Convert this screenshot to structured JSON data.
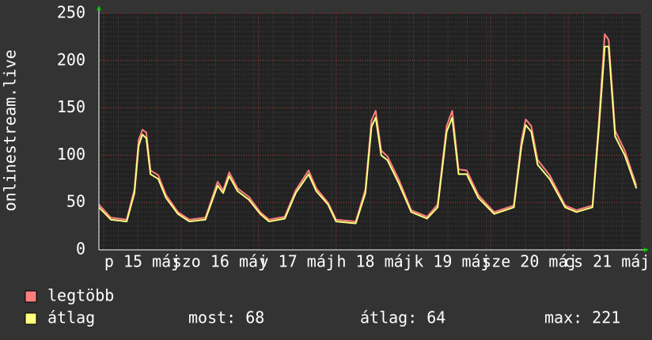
{
  "chart_data": {
    "type": "line",
    "y_label": "onlinestream.live",
    "x": [
      0,
      3.7,
      8.6,
      11,
      12.3,
      13.5,
      14.7,
      16,
      18.4,
      20.8,
      24.5,
      28,
      33,
      36.8,
      38.5,
      40.4,
      43,
      46.5,
      50,
      52.7,
      57.6,
      61,
      65,
      67.4,
      71,
      73.5,
      79.6,
      82.6,
      84.5,
      85.8,
      87.5,
      89.4,
      93,
      96.8,
      101.7,
      105,
      107.8,
      109.5,
      111.5,
      114,
      117.6,
      122.5,
      128.6,
      131,
      132.3,
      134,
      136,
      139.7,
      144.5,
      148,
      153,
      155,
      156.8,
      158,
      160,
      163,
      166.6
    ],
    "series": [
      {
        "name": "legtöbb",
        "color": "#ff7f7f",
        "values": [
          48,
          34,
          32,
          64,
          116,
          127,
          124,
          84,
          79,
          58,
          40,
          32,
          34,
          72,
          63,
          82,
          65,
          56,
          40,
          32,
          35,
          63,
          84,
          65,
          50,
          32,
          30,
          64,
          137,
          147,
          105,
          99,
          74,
          42,
          35,
          48,
          131,
          147,
          85,
          84,
          58,
          40,
          47,
          116,
          138,
          131,
          95,
          79,
          47,
          42,
          47,
          137,
          228,
          222,
          126,
          105,
          68
        ]
      },
      {
        "name": "átlag",
        "color": "#ffff80",
        "values": [
          45,
          32,
          30,
          60,
          110,
          122,
          118,
          80,
          75,
          55,
          38,
          30,
          32,
          68,
          60,
          78,
          62,
          53,
          38,
          30,
          33,
          60,
          80,
          62,
          48,
          30,
          28,
          60,
          130,
          140,
          100,
          95,
          70,
          40,
          33,
          45,
          125,
          140,
          80,
          80,
          55,
          38,
          45,
          110,
          132,
          125,
          90,
          75,
          45,
          40,
          45,
          130,
          215,
          215,
          120,
          100,
          65
        ]
      }
    ],
    "xlim": [
      0,
      168
    ],
    "xticks": [
      {
        "value": 13.5,
        "label": "p 15 máj"
      },
      {
        "value": 37.5,
        "label": "szo 16 máj"
      },
      {
        "value": 61.5,
        "label": "v 17 máj"
      },
      {
        "value": 85.5,
        "label": "h 18 máj"
      },
      {
        "value": 109.5,
        "label": "k 19 máj"
      },
      {
        "value": 133.5,
        "label": "sze 20 máj"
      },
      {
        "value": 157.5,
        "label": "cs 21 máj"
      }
    ],
    "ylim": [
      0,
      250
    ],
    "yticks": [
      0,
      50,
      100,
      150,
      200,
      250
    ],
    "grid": true,
    "stats": [
      {
        "label": "most:",
        "value": 68
      },
      {
        "label": "átlag:",
        "value": 64
      },
      {
        "label": "max:",
        "value": 221
      }
    ]
  }
}
